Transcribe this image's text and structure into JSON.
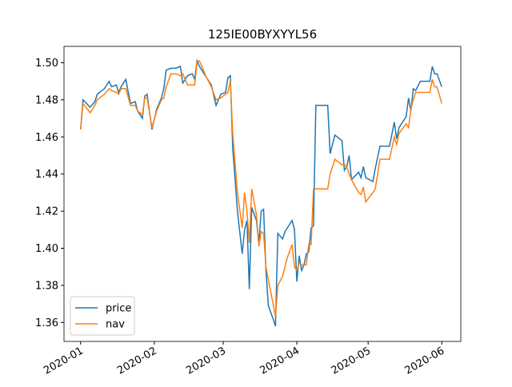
{
  "chart_data": {
    "type": "line",
    "title": "125IE00BYXYYL56",
    "x": [
      0,
      1,
      4,
      6,
      7,
      10,
      12,
      13,
      15,
      16,
      17,
      18,
      19,
      21,
      23,
      24,
      26,
      27,
      28,
      30,
      32,
      34,
      35,
      36,
      38,
      40,
      42,
      43,
      45,
      47,
      48,
      49,
      50,
      53,
      55,
      57,
      59,
      61,
      62,
      63,
      64,
      66,
      68,
      69,
      70,
      71,
      72,
      74,
      75,
      76,
      77,
      78,
      79,
      81,
      82,
      83,
      85,
      86,
      87,
      89,
      90,
      91,
      92,
      93,
      94,
      95,
      96,
      97,
      98,
      99,
      104,
      105,
      107,
      110,
      111,
      112,
      113,
      114,
      117,
      118,
      119,
      120,
      123,
      124,
      126,
      128,
      130,
      132,
      133,
      134,
      137,
      138,
      139,
      140,
      141,
      143,
      147,
      148,
      149,
      150,
      152
    ],
    "series": [
      {
        "name": "price",
        "color": "#1f77b4",
        "values": [
          1.464,
          1.48,
          1.476,
          1.479,
          1.483,
          1.486,
          1.49,
          1.487,
          1.488,
          1.484,
          1.487,
          1.489,
          1.491,
          1.478,
          1.479,
          1.474,
          1.47,
          1.482,
          1.483,
          1.464,
          1.475,
          1.481,
          1.486,
          1.496,
          1.497,
          1.497,
          1.498,
          1.489,
          1.493,
          1.494,
          1.491,
          1.501,
          1.498,
          1.492,
          1.488,
          1.477,
          1.483,
          1.484,
          1.492,
          1.493,
          1.454,
          1.42,
          1.397,
          1.41,
          1.415,
          1.378,
          1.422,
          1.415,
          1.403,
          1.42,
          1.421,
          1.388,
          1.369,
          1.362,
          1.358,
          1.408,
          1.405,
          1.409,
          1.411,
          1.415,
          1.41,
          1.382,
          1.396,
          1.388,
          1.391,
          1.397,
          1.398,
          1.411,
          1.412,
          1.477,
          1.477,
          1.451,
          1.461,
          1.458,
          1.442,
          1.444,
          1.45,
          1.437,
          1.441,
          1.438,
          1.444,
          1.438,
          1.436,
          1.443,
          1.455,
          1.455,
          1.455,
          1.468,
          1.459,
          1.465,
          1.471,
          1.481,
          1.474,
          1.486,
          1.485,
          1.49,
          1.49,
          1.498,
          1.494,
          1.494,
          1.487
        ]
      },
      {
        "name": "nav",
        "color": "#ff7f0e",
        "values": [
          1.464,
          1.478,
          1.473,
          1.477,
          1.48,
          1.483,
          1.486,
          1.485,
          1.484,
          1.483,
          1.486,
          1.486,
          1.486,
          1.477,
          1.477,
          1.474,
          1.472,
          1.481,
          1.481,
          1.465,
          1.474,
          1.48,
          1.481,
          1.487,
          1.494,
          1.494,
          1.493,
          1.494,
          1.488,
          1.488,
          1.488,
          1.5,
          1.501,
          1.492,
          1.487,
          1.48,
          1.481,
          1.483,
          1.484,
          1.49,
          1.462,
          1.43,
          1.411,
          1.43,
          1.42,
          1.403,
          1.432,
          1.418,
          1.401,
          1.409,
          1.408,
          1.39,
          1.383,
          1.37,
          1.363,
          1.38,
          1.385,
          1.39,
          1.395,
          1.402,
          1.39,
          1.388,
          1.392,
          1.391,
          1.391,
          1.391,
          1.402,
          1.402,
          1.432,
          1.432,
          1.432,
          1.44,
          1.448,
          1.445,
          1.445,
          1.444,
          1.44,
          1.437,
          1.43,
          1.429,
          1.433,
          1.425,
          1.43,
          1.432,
          1.448,
          1.448,
          1.448,
          1.46,
          1.456,
          1.462,
          1.467,
          1.465,
          1.475,
          1.48,
          1.484,
          1.484,
          1.484,
          1.491,
          1.487,
          1.487,
          1.478
        ]
      }
    ],
    "xlim": [
      -7,
      160
    ],
    "xticks": [
      {
        "value": 0,
        "label": "2020-01"
      },
      {
        "value": 31,
        "label": "2020-02"
      },
      {
        "value": 60,
        "label": "2020-03"
      },
      {
        "value": 91,
        "label": "2020-04"
      },
      {
        "value": 121,
        "label": "2020-05"
      },
      {
        "value": 152,
        "label": "2020-06"
      }
    ],
    "ylim": [
      1.3498,
      1.5088
    ],
    "yticks": [
      1.36,
      1.38,
      {
        "value": 1.4,
        "label": "1.40"
      },
      1.42,
      1.44,
      1.46,
      1.48,
      {
        "value": 1.5,
        "label": "1.50"
      }
    ],
    "legend": "lower left"
  }
}
